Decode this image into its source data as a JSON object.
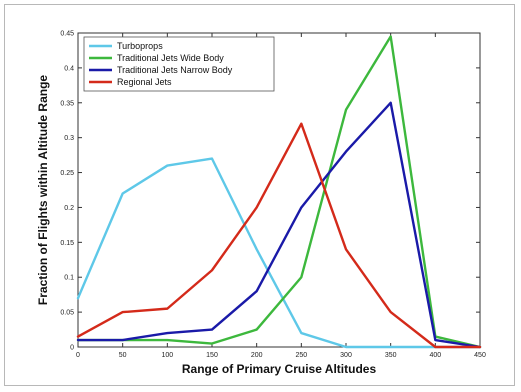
{
  "chart_data": {
    "type": "line",
    "xlabel": "Range of Primary Cruise Altitudes",
    "ylabel": "Fraction of Flights within Altitude Range",
    "x": [
      0,
      50,
      100,
      150,
      200,
      250,
      300,
      350,
      400,
      450
    ],
    "x_tick_labels": [
      "0",
      "50",
      "100",
      "150",
      "200",
      "250",
      "300",
      "350",
      "400",
      "450"
    ],
    "xlim": [
      0,
      450
    ],
    "ylim": [
      0,
      0.45
    ],
    "y_ticks": [
      0,
      0.05,
      0.1,
      0.15,
      0.2,
      0.25,
      0.3,
      0.35,
      0.4,
      0.45
    ],
    "y_tick_labels": [
      "0",
      "0.05",
      "0.1",
      "0.15",
      "0.2",
      "0.25",
      "0.3",
      "0.35",
      "0.4",
      "0.45"
    ],
    "grid": false,
    "legend_position": "top-left",
    "series": [
      {
        "name": "Turboprops",
        "color": "#5ec8e8",
        "values": [
          0.07,
          0.22,
          0.26,
          0.27,
          0.14,
          0.02,
          0.0,
          0.0,
          0.0,
          0.0
        ]
      },
      {
        "name": "Traditional Jets Wide Body",
        "color": "#3db83d",
        "values": [
          0.01,
          0.01,
          0.01,
          0.005,
          0.025,
          0.1,
          0.34,
          0.445,
          0.015,
          0.0
        ]
      },
      {
        "name": "Traditional Jets Narrow Body",
        "color": "#1a1aa8",
        "values": [
          0.01,
          0.01,
          0.02,
          0.025,
          0.08,
          0.2,
          0.28,
          0.35,
          0.01,
          0.0
        ]
      },
      {
        "name": "Regional Jets",
        "color": "#d42a1a",
        "values": [
          0.015,
          0.05,
          0.055,
          0.11,
          0.2,
          0.32,
          0.14,
          0.05,
          0.0,
          0.0
        ]
      }
    ]
  }
}
